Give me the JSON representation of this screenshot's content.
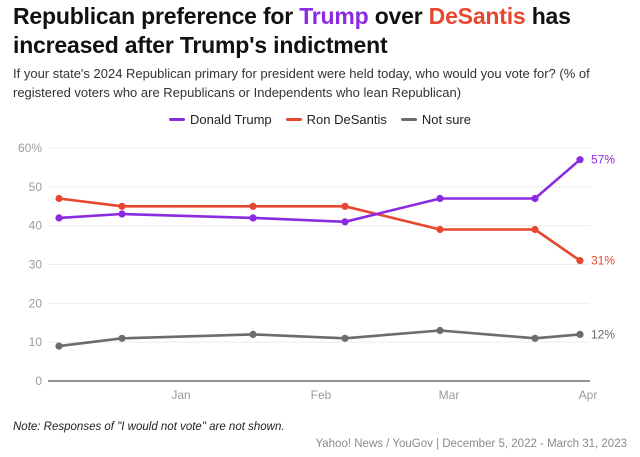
{
  "title": {
    "part1": "Republican preference for ",
    "trump": "Trump",
    "part2": " over ",
    "desantis": "DeSantis",
    "part3": " has increased after Trump's indictment"
  },
  "subtitle": "If your state's 2024 Republican primary for president were held today, who would you vote for? (% of registered voters who are Republicans or Independents who lean Republican)",
  "note": "Note: Responses of \"I would not vote\" are not shown.",
  "source": "Yahoo! News / YouGov | December 5, 2022 - March 31, 2023",
  "colors": {
    "trump": "#8a2be2",
    "desantis": "#e8472f",
    "not_sure": "#6b6b70",
    "grid": "#ececec",
    "axis": "#555555",
    "tick_text": "#9a9a9a"
  },
  "chart_data": {
    "type": "line",
    "title": "Republican preference for Trump over DeSantis has increased after Trump's indictment",
    "xlabel": "",
    "ylabel": "",
    "x_tick_labels": [
      "Jan",
      "Feb",
      "Mar",
      "Apr"
    ],
    "x_tick_days": [
      27,
      58,
      86,
      117
    ],
    "x_days": [
      0,
      16,
      50,
      74,
      98,
      122,
      116
    ],
    "y_ticks": [
      0,
      10,
      20,
      30,
      40,
      50,
      60
    ],
    "y_tick_labels": [
      "0",
      "10",
      "20",
      "30",
      "40",
      "50",
      "60%"
    ],
    "ylim": [
      0,
      60
    ],
    "grid": true,
    "legend_position": "top-center",
    "series": [
      {
        "name": "Donald Trump",
        "key": "trump",
        "values": [
          42,
          43,
          42,
          41,
          47,
          47,
          57
        ],
        "end_label": "57%"
      },
      {
        "name": "Ron DeSantis",
        "key": "desantis",
        "values": [
          47,
          45,
          45,
          45,
          39,
          39,
          31
        ],
        "end_label": "31%"
      },
      {
        "name": "Not sure",
        "key": "not_sure",
        "values": [
          9,
          11,
          12,
          11,
          13,
          11,
          12
        ],
        "end_label": "12%"
      }
    ]
  }
}
